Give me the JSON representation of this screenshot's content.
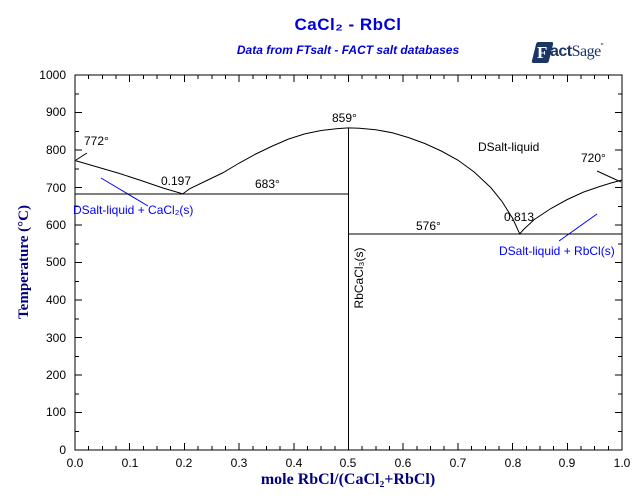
{
  "title": "CaCl₂ - RbCl",
  "subtitle": "Data from FTsalt - FACT salt databases",
  "logo": {
    "f": "F",
    "act": "act",
    "sage": "Sage",
    "tm": "″"
  },
  "colors": {
    "title_blue": "#0000dd",
    "axis_title_navy": "#000080",
    "phase_label_blue": "#0000ff",
    "line_black": "#000000",
    "logo_navy": "#1a3566",
    "background": "#ffffff"
  },
  "annotations": {
    "cacl2_melting": "772°",
    "left_eutectic_x": "0.197",
    "left_eutectic_T": "683°",
    "congruent_T": "859°",
    "dsalt_liquid_region": "DSalt-liquid",
    "rbcl_melting": "720°",
    "right_eutectic_x": "0.813",
    "right_eutectic_T": "576°",
    "compound_label": "RbCaCl₃(s)",
    "phase_left": "DSalt-liquid + CaCl₂(s)",
    "phase_right": "DSalt-liquid + RbCl(s)"
  },
  "chart_data": {
    "type": "line",
    "title": "CaCl₂ - RbCl",
    "xlabel": "mole RbCl/(CaCl₂+RbCl)",
    "ylabel": "Temperature (°C)",
    "xlim": [
      0,
      1
    ],
    "ylim": [
      0,
      1000
    ],
    "x_major_step": 0.1,
    "x_minor_step": 0.025,
    "y_major_step": 100,
    "y_minor_step": 50,
    "grid": false,
    "x_tick_labels": [
      "0.0",
      "0.1",
      "0.2",
      "0.3",
      "0.4",
      "0.5",
      "0.6",
      "0.7",
      "0.8",
      "0.9",
      "1.0"
    ],
    "y_tick_labels": [
      "0",
      "100",
      "200",
      "300",
      "400",
      "500",
      "600",
      "700",
      "800",
      "900",
      "1000"
    ],
    "key_points": {
      "cacl2_melting_C": 772,
      "left_eutectic": {
        "x": 0.197,
        "T_C": 683
      },
      "congruent_maximum": {
        "x": 0.5,
        "T_C": 859
      },
      "right_eutectic": {
        "x": 0.813,
        "T_C": 576
      },
      "rbcl_melting_C": 720,
      "compound": "RbCaCl₃(s)"
    },
    "series": [
      {
        "name": "liquidus",
        "points": [
          [
            0,
            772
          ],
          [
            0.04,
            755
          ],
          [
            0.08,
            738
          ],
          [
            0.12,
            719
          ],
          [
            0.16,
            699
          ],
          [
            0.197,
            683
          ],
          [
            0.21,
            697
          ],
          [
            0.24,
            718
          ],
          [
            0.27,
            739
          ],
          [
            0.3,
            765
          ],
          [
            0.33,
            789
          ],
          [
            0.36,
            810
          ],
          [
            0.39,
            829
          ],
          [
            0.42,
            843
          ],
          [
            0.45,
            852
          ],
          [
            0.48,
            857
          ],
          [
            0.5,
            859
          ],
          [
            0.52,
            858
          ],
          [
            0.55,
            854
          ],
          [
            0.58,
            846
          ],
          [
            0.61,
            833
          ],
          [
            0.64,
            817
          ],
          [
            0.67,
            797
          ],
          [
            0.7,
            773
          ],
          [
            0.73,
            741
          ],
          [
            0.76,
            700
          ],
          [
            0.78,
            664
          ],
          [
            0.8,
            618
          ],
          [
            0.813,
            576
          ],
          [
            0.82,
            588
          ],
          [
            0.84,
            615
          ],
          [
            0.87,
            644
          ],
          [
            0.9,
            668
          ],
          [
            0.93,
            688
          ],
          [
            0.96,
            703
          ],
          [
            0.98,
            712
          ],
          [
            1.0,
            720
          ]
        ]
      },
      {
        "name": "eutectic-line-cacl2-side",
        "points": [
          [
            0,
            683
          ],
          [
            0.5,
            683
          ]
        ]
      },
      {
        "name": "eutectic-line-rbcl-side",
        "points": [
          [
            0.5,
            576
          ],
          [
            1.0,
            576
          ]
        ]
      },
      {
        "name": "rbcacl3-compound-line",
        "points": [
          [
            0.5,
            0
          ],
          [
            0.5,
            859
          ]
        ]
      }
    ]
  }
}
